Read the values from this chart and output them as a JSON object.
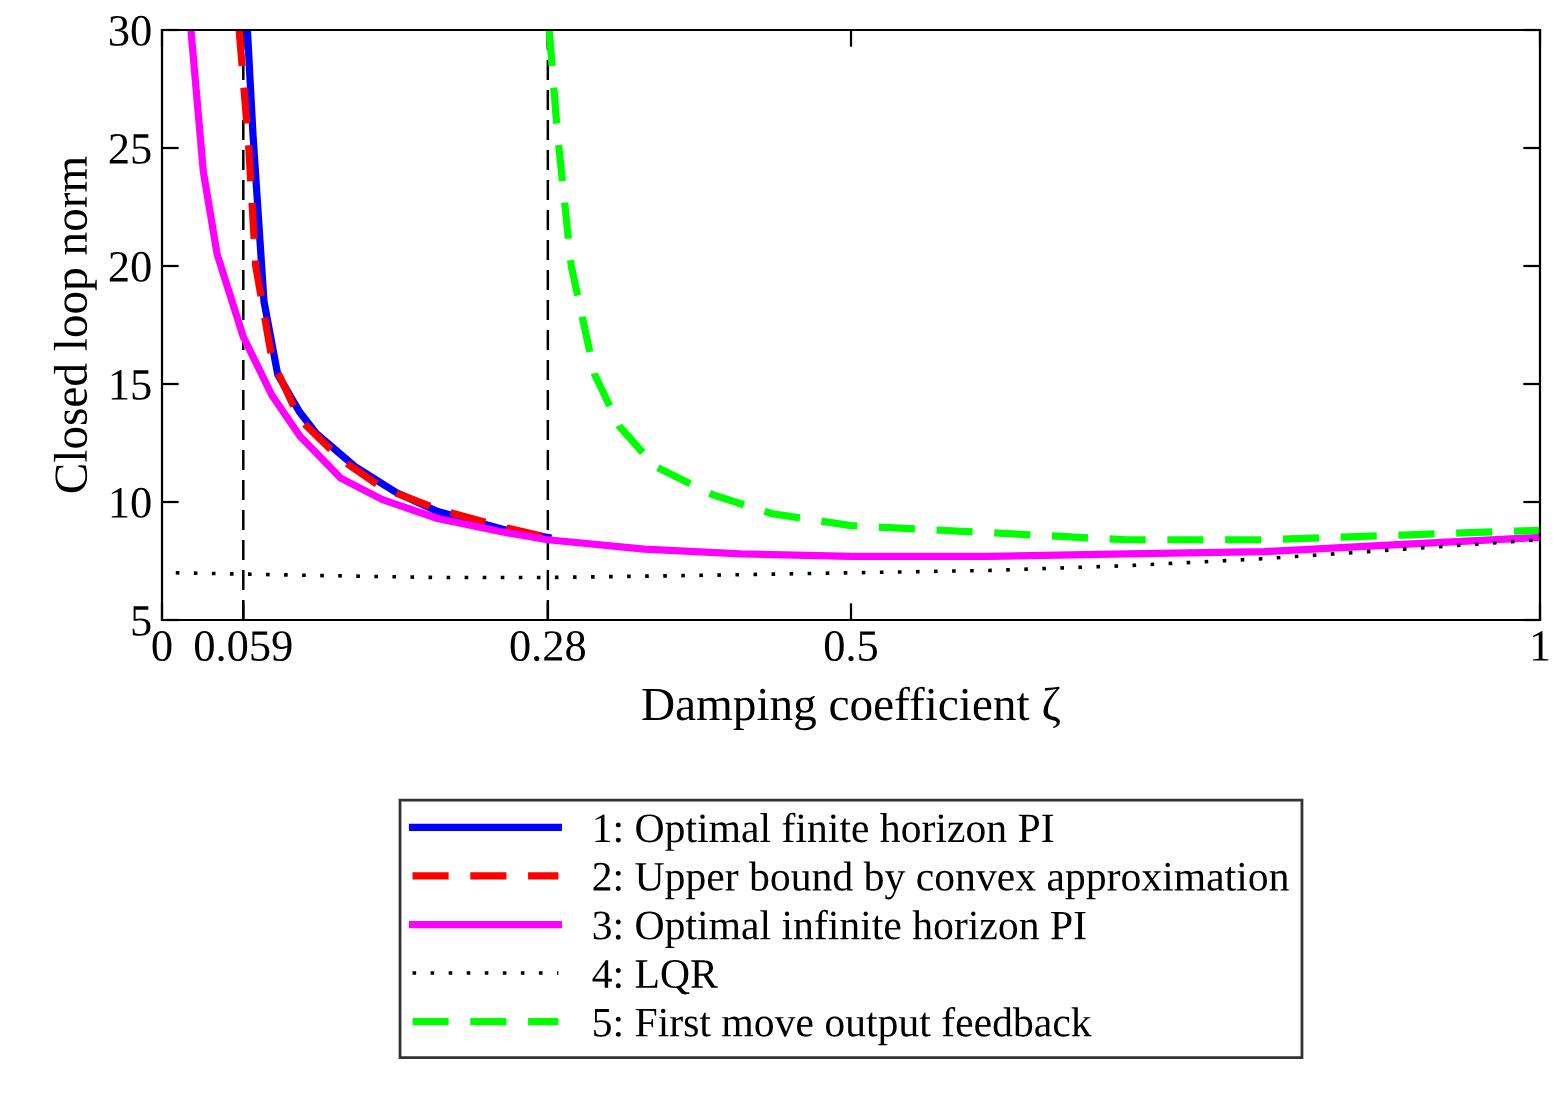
{
  "chart_data": {
    "type": "line",
    "xlabel": "Damping coefficient ζ",
    "ylabel": "Closed loop norm",
    "xlim": [
      0,
      1
    ],
    "ylim": [
      5,
      30
    ],
    "xticks": [
      0,
      0.059,
      0.28,
      0.5,
      1
    ],
    "yticks": [
      5,
      10,
      15,
      20,
      25,
      30
    ],
    "grid": false,
    "legend": "bottom",
    "ref_lines": [
      {
        "axis": "x",
        "value": 0.059,
        "color": "#000000",
        "line_style": "dashed"
      },
      {
        "axis": "x",
        "value": 0.28,
        "color": "#000000",
        "line_style": "dashed"
      }
    ],
    "series": [
      {
        "name": "1: Optimal finite horizon PI",
        "color": "#0000ff",
        "line_style": "solid",
        "x": [
          0.062,
          0.066,
          0.074,
          0.084,
          0.1,
          0.112,
          0.14,
          0.17,
          0.2,
          0.25,
          0.28
        ],
        "values": [
          30,
          25.6,
          18.5,
          15.4,
          13.8,
          12.9,
          11.5,
          10.4,
          9.6,
          8.8,
          8.5
        ]
      },
      {
        "name": "2: Upper bound by convex approximation",
        "color": "#ff0000",
        "line_style": "dashed",
        "x": [
          0.056,
          0.063,
          0.068,
          0.08,
          0.1,
          0.13,
          0.16,
          0.2,
          0.25,
          0.28
        ],
        "values": [
          30,
          25,
          20,
          16,
          13.5,
          11.8,
          10.6,
          9.7,
          8.9,
          8.5
        ]
      },
      {
        "name": "3: Optimal infinite horizon PI",
        "color": "#ff00ff",
        "line_style": "solid",
        "x": [
          0.021,
          0.03,
          0.04,
          0.059,
          0.08,
          0.1,
          0.13,
          0.16,
          0.2,
          0.25,
          0.28,
          0.35,
          0.42,
          0.5,
          0.6,
          0.7,
          0.8,
          0.9,
          1.0
        ],
        "values": [
          30,
          24,
          20.5,
          17,
          14.5,
          12.8,
          11,
          10.1,
          9.3,
          8.7,
          8.4,
          8.0,
          7.8,
          7.7,
          7.7,
          7.8,
          7.9,
          8.2,
          8.5
        ]
      },
      {
        "name": "4: LQR",
        "color": "#000000",
        "line_style": "dotted",
        "x": [
          0.01,
          0.1,
          0.2,
          0.28,
          0.4,
          0.5,
          0.6,
          0.7,
          0.8,
          0.85,
          0.9,
          1.0
        ],
        "values": [
          7.0,
          6.9,
          6.8,
          6.8,
          6.9,
          7.0,
          7.1,
          7.3,
          7.6,
          7.8,
          8.0,
          8.4
        ]
      },
      {
        "name": "5: First move output feedback",
        "color": "#00ff00",
        "line_style": "dashed",
        "x": [
          0.281,
          0.287,
          0.297,
          0.314,
          0.332,
          0.358,
          0.4,
          0.443,
          0.5,
          0.6,
          0.7,
          0.8,
          0.9,
          1.0
        ],
        "values": [
          30,
          25.6,
          20,
          15.4,
          13.2,
          11.5,
          10.3,
          9.5,
          9.0,
          8.7,
          8.4,
          8.4,
          8.6,
          8.8
        ]
      }
    ]
  }
}
